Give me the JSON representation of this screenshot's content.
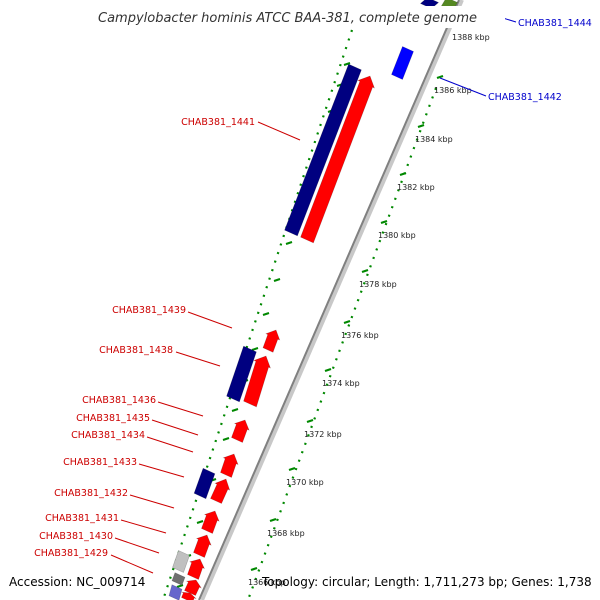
{
  "title": "Campylobacter hominis ATCC BAA-381, complete genome",
  "footer": {
    "accession": "Accession: NC_009714",
    "topology": "Topology: circular; Length: 1,711,273 bp; Genes: 1,738"
  },
  "colors": {
    "forward_cds": "#ff0000",
    "reverse_cds": "#000080",
    "label_forward": "#cc0000",
    "label_reverse": "#0000cc",
    "tick_dots": "#008800",
    "backbone": "#999999"
  },
  "scale_ticks": [
    {
      "label": "1388 kbp"
    },
    {
      "label": "1386 kbp"
    },
    {
      "label": "1384 kbp"
    },
    {
      "label": "1382 kbp"
    },
    {
      "label": "1380 kbp"
    },
    {
      "label": "1378 kbp"
    },
    {
      "label": "1376 kbp"
    },
    {
      "label": "1374 kbp"
    },
    {
      "label": "1372 kbp"
    },
    {
      "label": "1370 kbp"
    },
    {
      "label": "1368 kbp"
    },
    {
      "label": "1366 kbp"
    }
  ],
  "gene_labels": [
    {
      "text": "CHAB381_1444"
    },
    {
      "text": "CHAB381_1442"
    },
    {
      "text": "CHAB381_1441"
    },
    {
      "text": "CHAB381_1439"
    },
    {
      "text": "CHAB381_1438"
    },
    {
      "text": "CHAB381_1436"
    },
    {
      "text": "CHAB381_1435"
    },
    {
      "text": "CHAB381_1434"
    },
    {
      "text": "CHAB381_1433"
    },
    {
      "text": "CHAB381_1432"
    },
    {
      "text": "CHAB381_1431"
    },
    {
      "text": "CHAB381_1430"
    },
    {
      "text": "CHAB381_1429"
    }
  ]
}
